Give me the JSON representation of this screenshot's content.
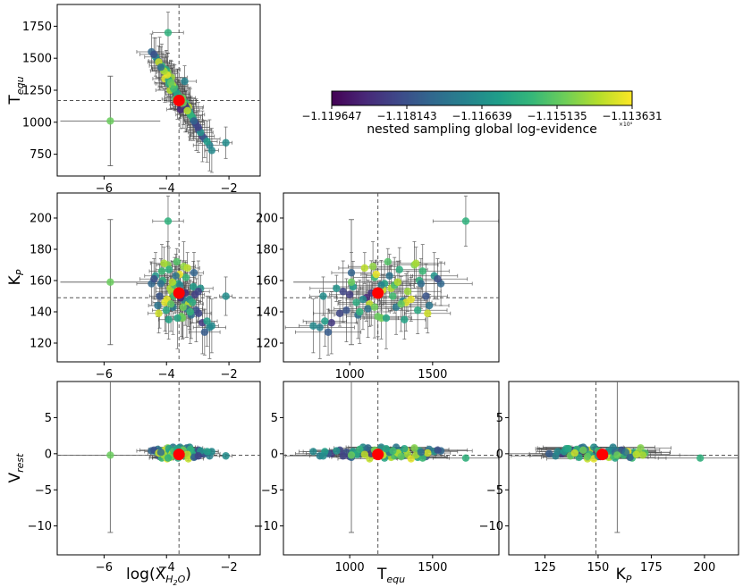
{
  "chart_data": {
    "type": "scatter",
    "description_kind": "corner-plot",
    "variables": [
      {
        "key": "logx",
        "label": "log(X",
        "sub": "H2O",
        "label_end": ")",
        "range": [
          -7.5,
          -1.0
        ],
        "ticks": [
          -6,
          -4,
          -2
        ],
        "tick_labels": [
          "−6",
          "−4",
          "−2"
        ],
        "truth": -3.6,
        "best": -3.6
      },
      {
        "key": "teq",
        "label": "T",
        "sub": "equ",
        "label_end": "",
        "range": [
          600,
          1900
        ],
        "ticks": [
          1000,
          1500
        ],
        "tick_labels": [
          "1000",
          "1500"
        ],
        "truth": 1170,
        "best": 1170
      },
      {
        "key": "kp",
        "label": "K",
        "sub": "P",
        "label_end": "",
        "range": [
          108,
          216
        ],
        "ticks": [
          125,
          150,
          175,
          200
        ],
        "tick_labels": [
          "125",
          "150",
          "175",
          "200"
        ],
        "truth": 149,
        "best": 152
      },
      {
        "key": "vrest",
        "label": "V",
        "sub": "rest",
        "label_end": "",
        "range": [
          -14,
          10
        ],
        "ticks": [
          -10,
          -5,
          0,
          5
        ],
        "tick_labels": [
          "−10",
          "−5",
          "0",
          "5"
        ],
        "truth": -0.2,
        "best": -0.1
      }
    ],
    "panels": [
      {
        "x": "logx",
        "y": "teq",
        "yticks": [
          750,
          1000,
          1250,
          1500,
          1750
        ],
        "ytick_labels": [
          "750",
          "1000",
          "1250",
          "1500",
          "1750"
        ],
        "yrange": [
          580,
          1920
        ],
        "show_ylabel": true,
        "show_xlabel": false
      },
      {
        "x": "logx",
        "y": "kp",
        "yticks": [
          120,
          140,
          160,
          180,
          200
        ],
        "ytick_labels": [
          "120",
          "140",
          "160",
          "180",
          "200"
        ],
        "yrange": [
          108,
          216
        ],
        "show_ylabel": true,
        "show_xlabel": false
      },
      {
        "x": "teq",
        "y": "kp",
        "yticks": [
          120,
          140,
          160,
          180,
          200
        ],
        "ytick_labels": [
          "120",
          "140",
          "160",
          "180",
          "200"
        ],
        "yrange": [
          108,
          216
        ],
        "show_ylabel": false,
        "show_xlabel": false
      },
      {
        "x": "logx",
        "y": "vrest",
        "yticks": [
          -10,
          -5,
          0,
          5
        ],
        "ytick_labels": [
          "−10",
          "−5",
          "0",
          "5"
        ],
        "yrange": [
          -14,
          10
        ],
        "show_ylabel": true,
        "show_xlabel": true
      },
      {
        "x": "teq",
        "y": "vrest",
        "yticks": [
          -10,
          -5,
          0,
          5
        ],
        "ytick_labels": [
          "−10",
          "−5",
          "0",
          "5"
        ],
        "yrange": [
          -14,
          10
        ],
        "show_ylabel": false,
        "show_xlabel": true
      },
      {
        "x": "kp",
        "y": "vrest",
        "yticks": [
          -10,
          -5,
          0,
          5
        ],
        "ytick_labels": [
          "−10",
          "−5",
          "0",
          "5"
        ],
        "yrange": [
          -14,
          10
        ],
        "show_ylabel": false,
        "show_xlabel": true
      }
    ],
    "colorbar": {
      "ticks": [
        "−1.119647",
        "−1.118143",
        "−1.116639",
        "−1.115135",
        "−1.113631"
      ],
      "range": [
        -1.119647,
        -1.113631
      ],
      "label": "nested sampling global log-evidence",
      "exponent": "×10⁴",
      "colormap": [
        "#440154",
        "#482878",
        "#3e4989",
        "#31688e",
        "#26828e",
        "#1f9e89",
        "#35b779",
        "#6ece58",
        "#b5de2b",
        "#fde725"
      ]
    },
    "outlier": {
      "logx": -5.8,
      "teq": 1010,
      "kp": 159,
      "vrest": -0.2,
      "err": {
        "logx": 1.6,
        "teq": 350,
        "kp": 40,
        "vrest": 10.7
      },
      "evidence": -1.11504
    },
    "samples": [
      {
        "logx": -3.71,
        "teq": 1180,
        "kp": 152,
        "vrest": 0.1,
        "ev": -1.11521
      },
      {
        "logx": -3.42,
        "teq": 1320,
        "kp": 147,
        "vrest": -0.3,
        "ev": -1.11695
      },
      {
        "logx": -4.12,
        "teq": 1420,
        "kp": 160,
        "vrest": 0.4,
        "ev": -1.11581
      },
      {
        "logx": -3.05,
        "teq": 980,
        "kp": 141,
        "vrest": 0.2,
        "ev": -1.11812
      },
      {
        "logx": -3.88,
        "teq": 1250,
        "kp": 155,
        "vrest": -0.5,
        "ev": -1.11433
      },
      {
        "logx": -3.55,
        "teq": 1100,
        "kp": 149,
        "vrest": 0.6,
        "ev": -1.11902
      },
      {
        "logx": -4.35,
        "teq": 1510,
        "kp": 163,
        "vrest": 0.3,
        "ev": -1.11652
      },
      {
        "logx": -3.21,
        "teq": 1050,
        "kp": 138,
        "vrest": -0.1,
        "ev": -1.11744
      },
      {
        "logx": -3.96,
        "teq": 1390,
        "kp": 170,
        "vrest": 0.8,
        "ev": -1.11478
      },
      {
        "logx": -3.63,
        "teq": 1210,
        "kp": 158,
        "vrest": -0.6,
        "ev": -1.11611
      },
      {
        "logx": -2.85,
        "teq": 890,
        "kp": 133,
        "vrest": 0.0,
        "ev": -1.11867
      },
      {
        "logx": -4.05,
        "teq": 1340,
        "kp": 146,
        "vrest": 0.5,
        "ev": -1.11392
      },
      {
        "logx": -3.38,
        "teq": 1150,
        "kp": 162,
        "vrest": -0.2,
        "ev": -1.11559
      },
      {
        "logx": -3.79,
        "teq": 1280,
        "kp": 143,
        "vrest": 0.9,
        "ev": -1.11723
      },
      {
        "logx": -3.14,
        "teq": 1020,
        "kp": 156,
        "vrest": 0.3,
        "ev": -1.11636
      },
      {
        "logx": -4.22,
        "teq": 1460,
        "kp": 150,
        "vrest": -0.4,
        "ev": -1.11805
      },
      {
        "logx": -3.49,
        "teq": 1190,
        "kp": 136,
        "vrest": 0.7,
        "ev": -1.11491
      },
      {
        "logx": -2.62,
        "teq": 820,
        "kp": 130,
        "vrest": -0.3,
        "ev": -1.11703
      },
      {
        "logx": -3.92,
        "teq": 1300,
        "kp": 167,
        "vrest": 0.2,
        "ev": -1.11589
      },
      {
        "logx": -3.3,
        "teq": 1120,
        "kp": 145,
        "vrest": -0.7,
        "ev": -1.11418
      },
      {
        "logx": -4.48,
        "teq": 1550,
        "kp": 158,
        "vrest": 0.4,
        "ev": -1.11763
      },
      {
        "logx": -3.67,
        "teq": 1230,
        "kp": 172,
        "vrest": 0.1,
        "ev": -1.11527
      },
      {
        "logx": -2.97,
        "teq": 940,
        "kp": 139,
        "vrest": 0.5,
        "ev": -1.11838
      },
      {
        "logx": -3.84,
        "teq": 1350,
        "kp": 153,
        "vrest": -0.1,
        "ev": -1.11452
      },
      {
        "logx": -3.26,
        "teq": 1080,
        "kp": 148,
        "vrest": 0.9,
        "ev": -1.11671
      },
      {
        "logx": -4.01,
        "teq": 1410,
        "kp": 141,
        "vrest": -0.5,
        "ev": -1.11604
      },
      {
        "logx": -3.58,
        "teq": 1160,
        "kp": 164,
        "vrest": 0.3,
        "ev": -1.11379
      },
      {
        "logx": -2.78,
        "teq": 870,
        "kp": 127,
        "vrest": 0.0,
        "ev": -1.11789
      },
      {
        "logx": -3.74,
        "teq": 1270,
        "kp": 157,
        "vrest": -0.3,
        "ev": -1.11543
      },
      {
        "logx": -4.28,
        "teq": 1480,
        "kp": 144,
        "vrest": 0.6,
        "ev": -1.11728
      },
      {
        "logx": -3.45,
        "teq": 1140,
        "kp": 169,
        "vrest": 0.2,
        "ev": -1.11465
      },
      {
        "logx": -3.09,
        "teq": 1000,
        "kp": 151,
        "vrest": -0.4,
        "ev": -1.11856
      },
      {
        "logx": -3.93,
        "teq": 1330,
        "kp": 135,
        "vrest": 0.7,
        "ev": -1.11617
      },
      {
        "logx": -3.61,
        "teq": 1200,
        "kp": 154,
        "vrest": -0.2,
        "ev": -1.11402
      },
      {
        "logx": -2.55,
        "teq": 780,
        "kp": 131,
        "vrest": 0.3,
        "ev": -1.11681
      },
      {
        "logx": -4.15,
        "teq": 1440,
        "kp": 166,
        "vrest": -0.6,
        "ev": -1.11558
      },
      {
        "logx": -3.35,
        "teq": 1110,
        "kp": 142,
        "vrest": 0.8,
        "ev": -1.11749
      },
      {
        "logx": -3.81,
        "teq": 1290,
        "kp": 159,
        "vrest": 0.1,
        "ev": -1.11432
      },
      {
        "logx": -3.17,
        "teq": 1040,
        "kp": 146,
        "vrest": -0.1,
        "ev": -1.11593
      },
      {
        "logx": -4.4,
        "teq": 1530,
        "kp": 161,
        "vrest": 0.5,
        "ev": -1.11818
      },
      {
        "logx": -3.52,
        "teq": 1170,
        "kp": 137,
        "vrest": -0.3,
        "ev": -1.11504
      },
      {
        "logx": -2.91,
        "teq": 920,
        "kp": 155,
        "vrest": 0.4,
        "ev": -1.11657
      },
      {
        "logx": -3.98,
        "teq": 1370,
        "kp": 148,
        "vrest": -0.7,
        "ev": -1.11386
      },
      {
        "logx": -3.7,
        "teq": 1240,
        "kp": 163,
        "vrest": 0.2,
        "ev": -1.11735
      },
      {
        "logx": -3.24,
        "teq": 1060,
        "kp": 140,
        "vrest": 0.6,
        "ev": -1.11569
      },
      {
        "logx": -4.08,
        "teq": 1400,
        "kp": 171,
        "vrest": -0.2,
        "ev": -1.11442
      },
      {
        "logx": -3.4,
        "teq": 1130,
        "kp": 152,
        "vrest": 0.0,
        "ev": -1.11881
      },
      {
        "logx": -2.7,
        "teq": 850,
        "kp": 134,
        "vrest": 0.3,
        "ev": -1.11628
      },
      {
        "logx": -3.86,
        "teq": 1310,
        "kp": 145,
        "vrest": -0.4,
        "ev": -1.11512
      },
      {
        "logx": -3.57,
        "teq": 1190,
        "kp": 157,
        "vrest": 0.9,
        "ev": -1.11694
      },
      {
        "logx": -4.25,
        "teq": 1470,
        "kp": 139,
        "vrest": 0.1,
        "ev": -1.11407
      },
      {
        "logx": -3.12,
        "teq": 1010,
        "kp": 165,
        "vrest": -0.5,
        "ev": -1.11773
      },
      {
        "logx": -3.77,
        "teq": 1260,
        "kp": 150,
        "vrest": 0.4,
        "ev": -1.11549
      },
      {
        "logx": -2.1,
        "teq": 840,
        "kp": 150,
        "vrest": -0.3,
        "ev": -1.11672
      },
      {
        "logx": -3.95,
        "teq": 1700,
        "kp": 198,
        "vrest": -0.6,
        "ev": -1.11581
      },
      {
        "logx": -3.47,
        "teq": 1150,
        "kp": 143,
        "vrest": 0.5,
        "ev": -1.11496
      },
      {
        "logx": -4.18,
        "teq": 1430,
        "kp": 158,
        "vrest": 0.2,
        "ev": -1.11753
      },
      {
        "logx": -3.33,
        "teq": 1090,
        "kp": 168,
        "vrest": -0.1,
        "ev": -1.11423
      },
      {
        "logx": -3.65,
        "teq": 1220,
        "kp": 136,
        "vrest": 0.7,
        "ev": -1.11614
      },
      {
        "logx": -2.98,
        "teq": 960,
        "kp": 153,
        "vrest": -0.3,
        "ev": -1.11842
      }
    ]
  }
}
